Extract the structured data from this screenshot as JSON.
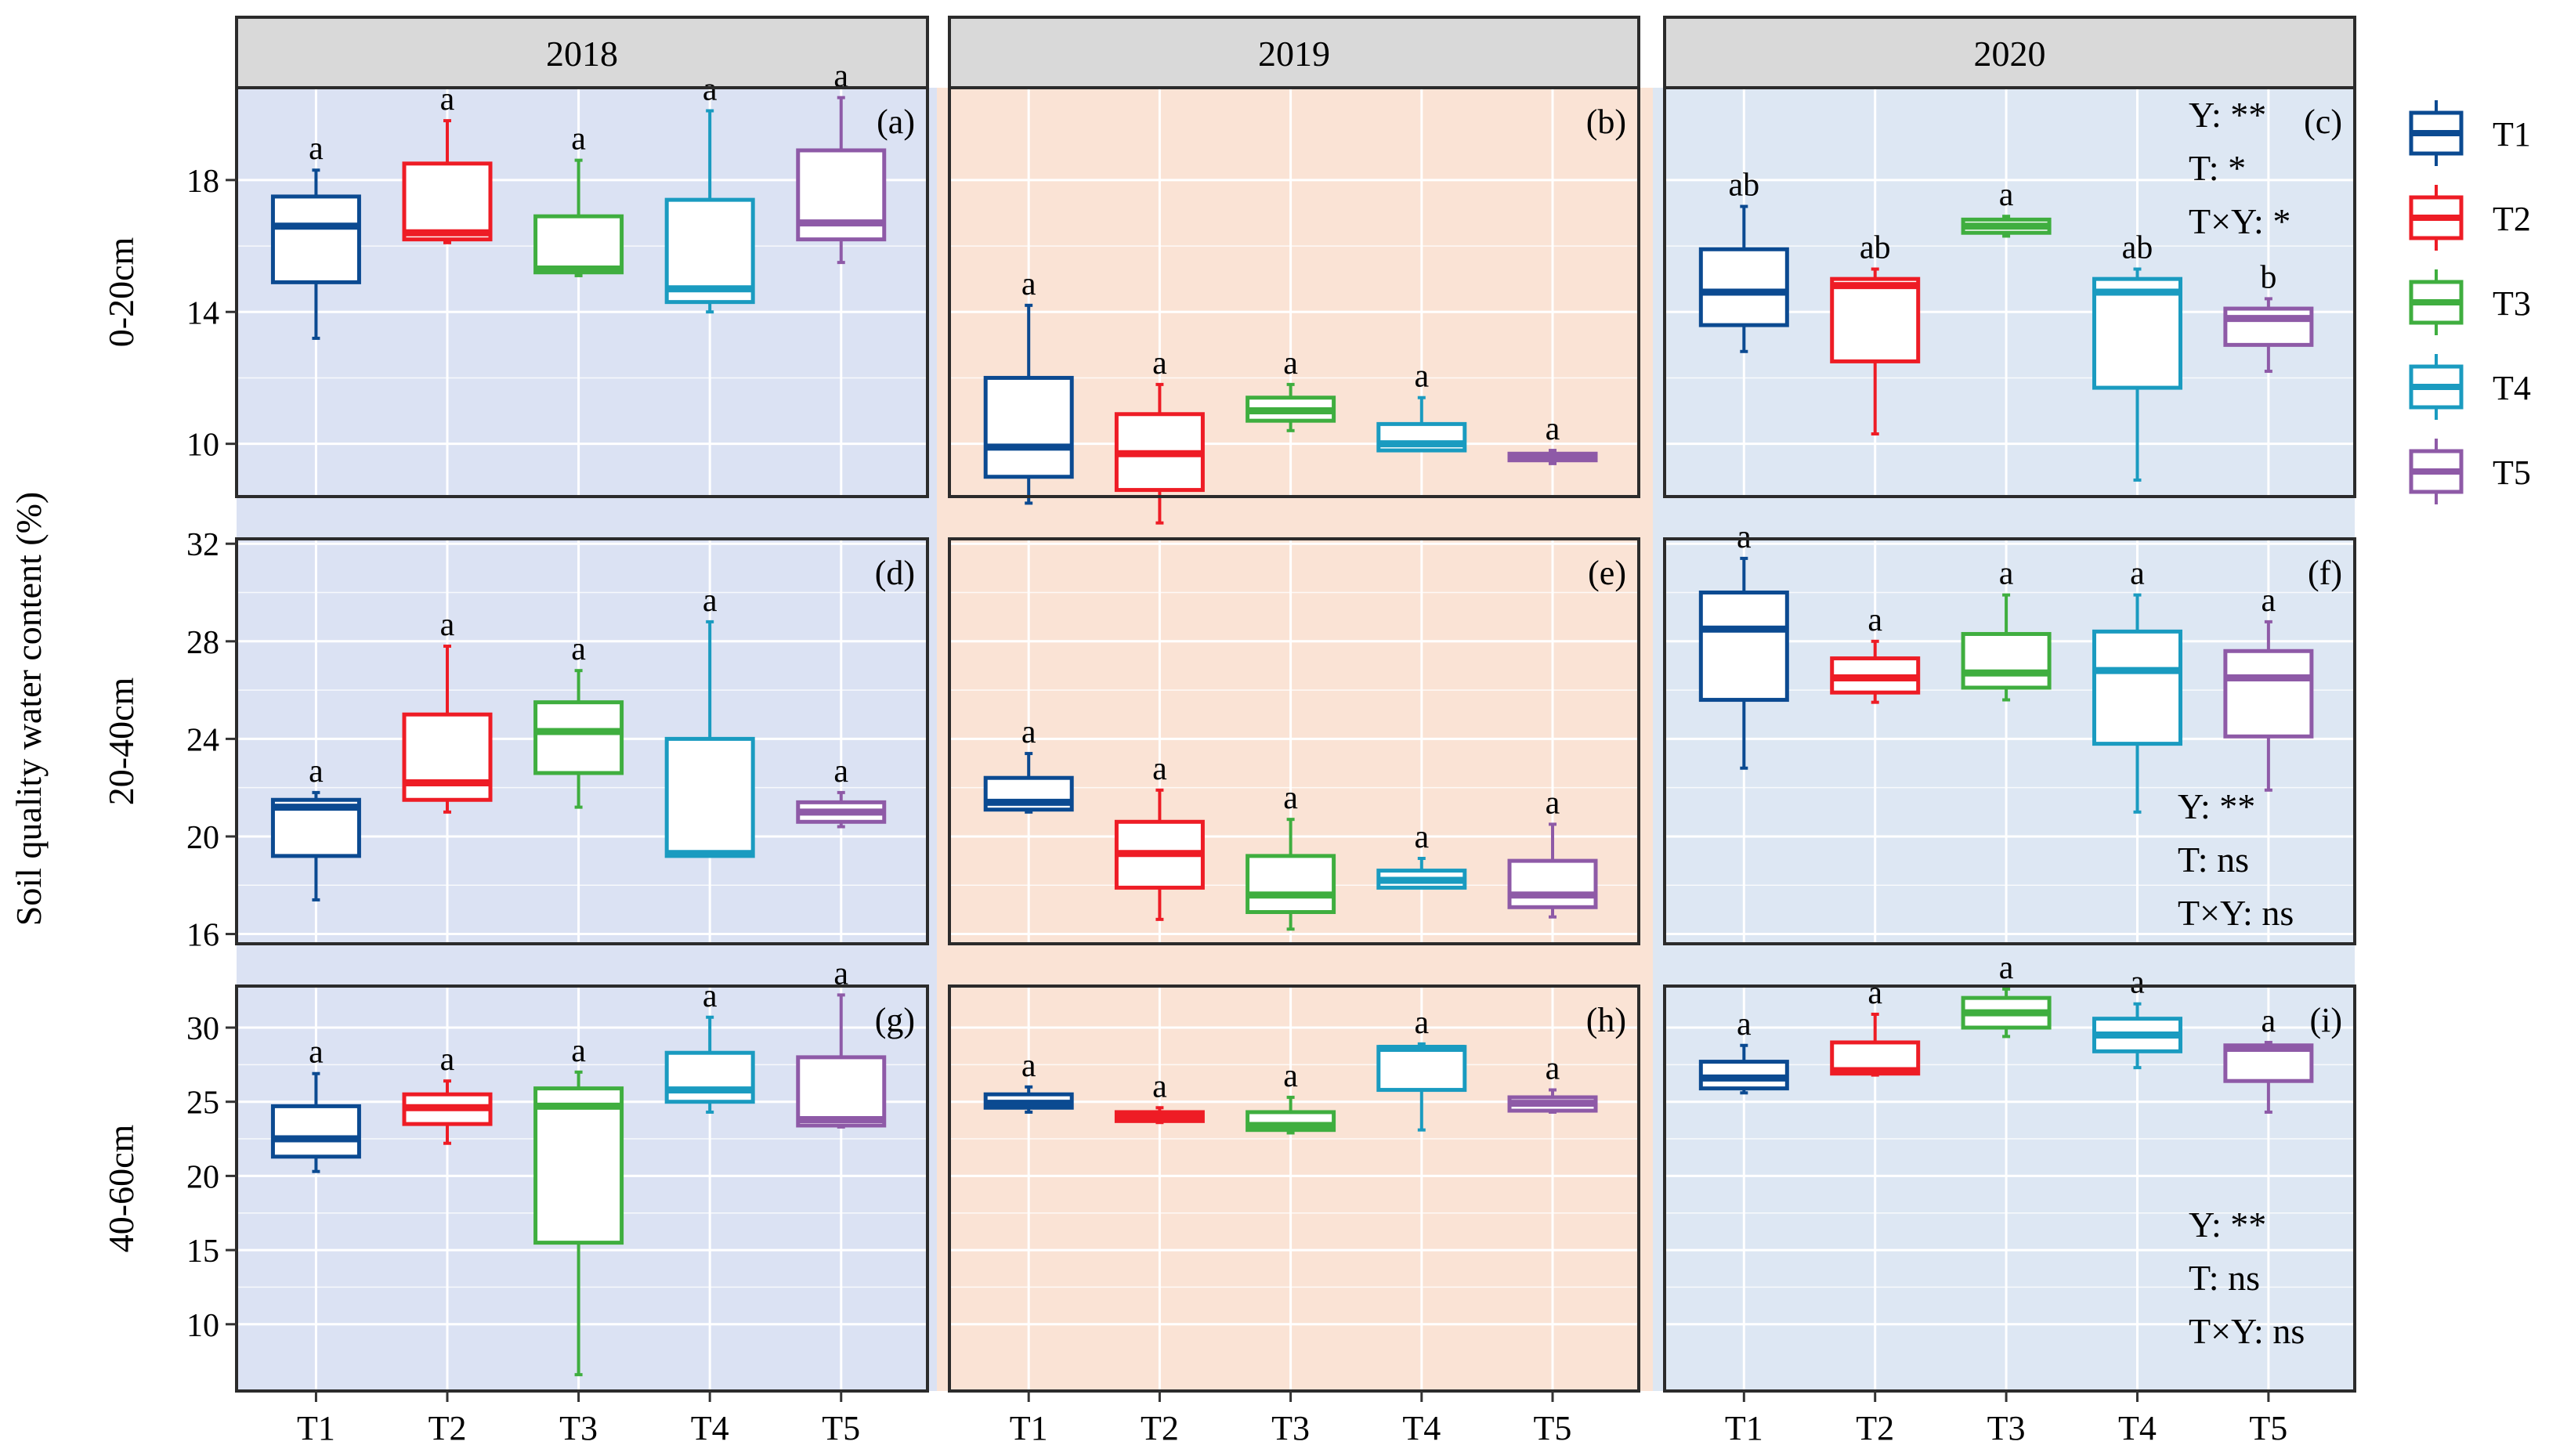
{
  "figure": {
    "ylabel": "Soil quality water content (%)",
    "row_labels": [
      "0-20cm",
      "20-40cm",
      "40-60cm"
    ],
    "year_labels": [
      "2018",
      "2019",
      "2020"
    ],
    "panel_bg": [
      "#dbe2f3",
      "#fae3d5",
      "#dde7f3"
    ]
  },
  "legend": [
    {
      "name": "T1",
      "color": "#0b4a91"
    },
    {
      "name": "T2",
      "color": "#ee1c25"
    },
    {
      "name": "T3",
      "color": "#3fae3f"
    },
    {
      "name": "T4",
      "color": "#1a9bc0"
    },
    {
      "name": "T5",
      "color": "#8e5aa7"
    }
  ],
  "chart_data": {
    "type": "boxplot",
    "x_categories": [
      "T1",
      "T2",
      "T3",
      "T4",
      "T5"
    ],
    "rows": [
      {
        "label": "0-20cm",
        "ylim": [
          8.4,
          20.8
        ],
        "yticks": [
          10,
          14,
          18
        ],
        "panels": [
          {
            "year": "2018",
            "tag": "(a)",
            "boxes": [
              {
                "t": "T1",
                "min": 13.2,
                "q1": 14.9,
                "median": 16.6,
                "q3": 17.5,
                "max": 18.3,
                "sig": "a"
              },
              {
                "t": "T2",
                "min": 16.1,
                "q1": 16.2,
                "median": 16.4,
                "q3": 18.5,
                "max": 19.8,
                "sig": "a"
              },
              {
                "t": "T3",
                "min": 15.1,
                "q1": 15.2,
                "median": 15.3,
                "q3": 16.9,
                "max": 18.6,
                "sig": "a"
              },
              {
                "t": "T4",
                "min": 14.0,
                "q1": 14.3,
                "median": 14.7,
                "q3": 17.4,
                "max": 20.1,
                "sig": "a"
              },
              {
                "t": "T5",
                "min": 15.5,
                "q1": 16.2,
                "median": 16.7,
                "q3": 18.9,
                "max": 20.5,
                "sig": "a"
              }
            ],
            "stats": []
          },
          {
            "year": "2019",
            "tag": "(b)",
            "boxes": [
              {
                "t": "T1",
                "min": 8.2,
                "q1": 9.0,
                "median": 9.9,
                "q3": 12.0,
                "max": 14.2,
                "sig": "a"
              },
              {
                "t": "T2",
                "min": 7.6,
                "q1": 8.6,
                "median": 9.7,
                "q3": 10.9,
                "max": 11.8,
                "sig": "a"
              },
              {
                "t": "T3",
                "min": 10.4,
                "q1": 10.7,
                "median": 11.0,
                "q3": 11.4,
                "max": 11.8,
                "sig": "a"
              },
              {
                "t": "T4",
                "min": 9.8,
                "q1": 9.8,
                "median": 10.0,
                "q3": 10.6,
                "max": 11.4,
                "sig": "a"
              },
              {
                "t": "T5",
                "min": 9.4,
                "q1": 9.5,
                "median": 9.6,
                "q3": 9.7,
                "max": 9.8,
                "sig": "a"
              }
            ],
            "stats": []
          },
          {
            "year": "2020",
            "tag": "(c)",
            "boxes": [
              {
                "t": "T1",
                "min": 12.8,
                "q1": 13.6,
                "median": 14.6,
                "q3": 15.9,
                "max": 17.2,
                "sig": "ab"
              },
              {
                "t": "T2",
                "min": 10.3,
                "q1": 12.5,
                "median": 14.8,
                "q3": 15.0,
                "max": 15.3,
                "sig": "ab"
              },
              {
                "t": "T3",
                "min": 16.3,
                "q1": 16.4,
                "median": 16.6,
                "q3": 16.8,
                "max": 16.9,
                "sig": "a"
              },
              {
                "t": "T4",
                "min": 8.9,
                "q1": 11.7,
                "median": 14.6,
                "q3": 15.0,
                "max": 15.3,
                "sig": "ab"
              },
              {
                "t": "T5",
                "min": 12.2,
                "q1": 13.0,
                "median": 13.8,
                "q3": 14.1,
                "max": 14.4,
                "sig": "b"
              }
            ],
            "stats": [
              "Y: **",
              "T: *",
              "T×Y: *"
            ]
          }
        ]
      },
      {
        "label": "20-40cm",
        "ylim": [
          15.6,
          32.2
        ],
        "yticks": [
          16,
          20,
          24,
          28,
          32
        ],
        "panels": [
          {
            "year": "2018",
            "tag": "(d)",
            "boxes": [
              {
                "t": "T1",
                "min": 17.4,
                "q1": 19.2,
                "median": 21.2,
                "q3": 21.5,
                "max": 21.8,
                "sig": "a"
              },
              {
                "t": "T2",
                "min": 21.0,
                "q1": 21.5,
                "median": 22.2,
                "q3": 25.0,
                "max": 27.8,
                "sig": "a"
              },
              {
                "t": "T3",
                "min": 21.2,
                "q1": 22.6,
                "median": 24.3,
                "q3": 25.5,
                "max": 26.8,
                "sig": "a"
              },
              {
                "t": "T4",
                "min": 19.2,
                "q1": 19.2,
                "median": 19.3,
                "q3": 24.0,
                "max": 28.8,
                "sig": "a"
              },
              {
                "t": "T5",
                "min": 20.4,
                "q1": 20.6,
                "median": 21.0,
                "q3": 21.4,
                "max": 21.8,
                "sig": "a"
              }
            ],
            "stats": []
          },
          {
            "year": "2019",
            "tag": "(e)",
            "boxes": [
              {
                "t": "T1",
                "min": 21.0,
                "q1": 21.1,
                "median": 21.4,
                "q3": 22.4,
                "max": 23.4,
                "sig": "a"
              },
              {
                "t": "T2",
                "min": 16.6,
                "q1": 17.9,
                "median": 19.3,
                "q3": 20.6,
                "max": 21.9,
                "sig": "a"
              },
              {
                "t": "T3",
                "min": 16.2,
                "q1": 16.9,
                "median": 17.6,
                "q3": 19.2,
                "max": 20.7,
                "sig": "a"
              },
              {
                "t": "T4",
                "min": 17.9,
                "q1": 17.9,
                "median": 18.2,
                "q3": 18.6,
                "max": 19.1,
                "sig": "a"
              },
              {
                "t": "T5",
                "min": 16.7,
                "q1": 17.1,
                "median": 17.6,
                "q3": 19.0,
                "max": 20.5,
                "sig": "a"
              }
            ],
            "stats": []
          },
          {
            "year": "2020",
            "tag": "(f)",
            "boxes": [
              {
                "t": "T1",
                "min": 22.8,
                "q1": 25.6,
                "median": 28.5,
                "q3": 30.0,
                "max": 31.4,
                "sig": "a"
              },
              {
                "t": "T2",
                "min": 25.5,
                "q1": 25.9,
                "median": 26.5,
                "q3": 27.3,
                "max": 28.0,
                "sig": "a"
              },
              {
                "t": "T3",
                "min": 25.6,
                "q1": 26.1,
                "median": 26.7,
                "q3": 28.3,
                "max": 29.9,
                "sig": "a"
              },
              {
                "t": "T4",
                "min": 21.0,
                "q1": 23.8,
                "median": 26.8,
                "q3": 28.4,
                "max": 29.9,
                "sig": "a"
              },
              {
                "t": "T5",
                "min": 21.9,
                "q1": 24.1,
                "median": 26.5,
                "q3": 27.6,
                "max": 28.8,
                "sig": "a"
              }
            ],
            "stats": [
              "Y: **",
              "T: ns",
              "T×Y: ns"
            ]
          }
        ]
      },
      {
        "label": "40-60cm",
        "ylim": [
          5.5,
          32.8
        ],
        "yticks": [
          10,
          15,
          20,
          25,
          30
        ],
        "panels": [
          {
            "year": "2018",
            "tag": "(g)",
            "boxes": [
              {
                "t": "T1",
                "min": 20.3,
                "q1": 21.3,
                "median": 22.5,
                "q3": 24.7,
                "max": 26.9,
                "sig": "a"
              },
              {
                "t": "T2",
                "min": 22.2,
                "q1": 23.5,
                "median": 24.6,
                "q3": 25.5,
                "max": 26.4,
                "sig": "a"
              },
              {
                "t": "T3",
                "min": 6.6,
                "q1": 15.5,
                "median": 24.7,
                "q3": 25.9,
                "max": 27.0,
                "sig": "a"
              },
              {
                "t": "T4",
                "min": 24.3,
                "q1": 25.0,
                "median": 25.8,
                "q3": 28.3,
                "max": 30.7,
                "sig": "a"
              },
              {
                "t": "T5",
                "min": 23.3,
                "q1": 23.4,
                "median": 23.8,
                "q3": 28.0,
                "max": 32.2,
                "sig": "a"
              }
            ],
            "stats": []
          },
          {
            "year": "2019",
            "tag": "(h)",
            "boxes": [
              {
                "t": "T1",
                "min": 24.3,
                "q1": 24.6,
                "median": 24.9,
                "q3": 25.5,
                "max": 26.0,
                "sig": "a"
              },
              {
                "t": "T2",
                "min": 23.6,
                "q1": 23.7,
                "median": 24.0,
                "q3": 24.3,
                "max": 24.6,
                "sig": "a"
              },
              {
                "t": "T3",
                "min": 22.9,
                "q1": 23.1,
                "median": 23.4,
                "q3": 24.3,
                "max": 25.3,
                "sig": "a"
              },
              {
                "t": "T4",
                "min": 23.1,
                "q1": 25.8,
                "median": 28.6,
                "q3": 28.7,
                "max": 28.9,
                "sig": "a"
              },
              {
                "t": "T5",
                "min": 24.3,
                "q1": 24.4,
                "median": 24.9,
                "q3": 25.3,
                "max": 25.8,
                "sig": "a"
              }
            ],
            "stats": []
          },
          {
            "year": "2020",
            "tag": "(i)",
            "boxes": [
              {
                "t": "T1",
                "min": 25.6,
                "q1": 25.9,
                "median": 26.6,
                "q3": 27.7,
                "max": 28.8,
                "sig": "a"
              },
              {
                "t": "T2",
                "min": 26.8,
                "q1": 26.9,
                "median": 27.1,
                "q3": 29.0,
                "max": 30.9,
                "sig": "a"
              },
              {
                "t": "T3",
                "min": 29.4,
                "q1": 30.0,
                "median": 31.0,
                "q3": 32.0,
                "max": 32.6,
                "sig": "a"
              },
              {
                "t": "T4",
                "min": 27.3,
                "q1": 28.4,
                "median": 29.5,
                "q3": 30.6,
                "max": 31.6,
                "sig": "a"
              },
              {
                "t": "T5",
                "min": 24.3,
                "q1": 26.4,
                "median": 28.6,
                "q3": 28.8,
                "max": 29.0,
                "sig": "a"
              }
            ],
            "stats": [
              "Y: **",
              "T: ns",
              "T×Y: ns"
            ]
          }
        ]
      }
    ]
  }
}
